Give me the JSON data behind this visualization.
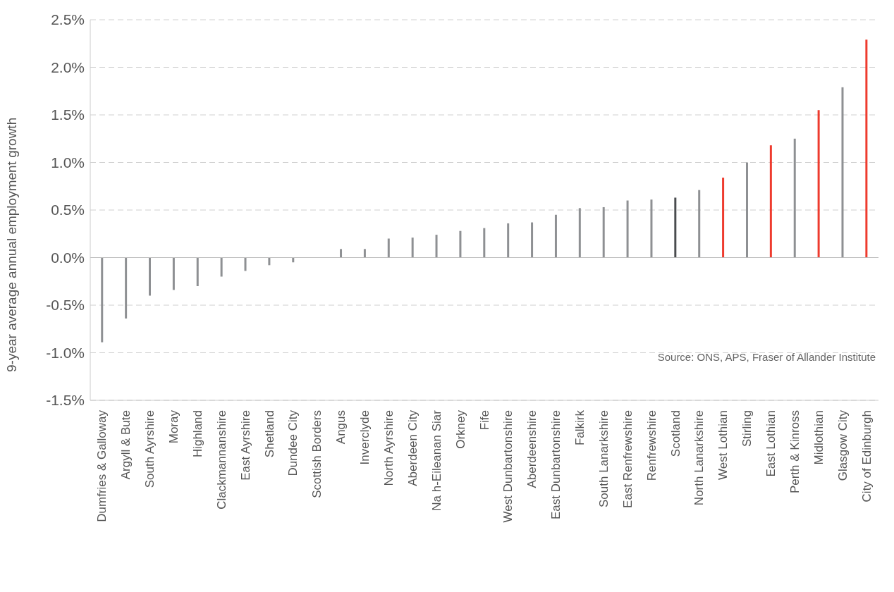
{
  "chart_data": {
    "type": "bar",
    "ylabel": "9-year average annual employment growth",
    "categories": [
      "Dumfries & Galloway",
      "Argyll & Bute",
      "South Ayrshire",
      "Moray",
      "Highland",
      "Clackmannanshire",
      "East Ayrshire",
      "Shetland",
      "Dundee City",
      "Scottish Borders",
      "Angus",
      "Inverclyde",
      "North Ayrshire",
      "Aberdeen City",
      "Na h-Eileanan Siar",
      "Orkney",
      "Fife",
      "West Dunbartonshire",
      "Aberdeenshire",
      "East Dunbartonshire",
      "Falkirk",
      "South Lanarkshire",
      "East Renfrewshire",
      "Renfrewshire",
      "Scotland",
      "North Lanarkshire",
      "West Lothian",
      "Stirling",
      "East Lothian",
      "Perth & Kinross",
      "Midlothian",
      "Glasgow City",
      "City of Edinburgh"
    ],
    "values": [
      -0.89,
      -0.64,
      -0.4,
      -0.34,
      -0.3,
      -0.2,
      -0.14,
      -0.08,
      -0.05,
      0,
      0.09,
      0.09,
      0.2,
      0.21,
      0.24,
      0.28,
      0.31,
      0.36,
      0.37,
      0.45,
      0.52,
      0.53,
      0.6,
      0.61,
      0.63,
      0.71,
      0.84,
      1.0,
      1.18,
      1.25,
      1.55,
      1.79,
      2.29
    ],
    "colors": [
      "#8e9093",
      "#8e9093",
      "#8e9093",
      "#8e9093",
      "#8e9093",
      "#8e9093",
      "#8e9093",
      "#8e9093",
      "#8e9093",
      "#8e9093",
      "#8e9093",
      "#8e9093",
      "#8e9093",
      "#8e9093",
      "#8e9093",
      "#8e9093",
      "#8e9093",
      "#8e9093",
      "#8e9093",
      "#8e9093",
      "#8e9093",
      "#8e9093",
      "#8e9093",
      "#8e9093",
      "#4a4c4f",
      "#8e9093",
      "#ee3b2e",
      "#8e9093",
      "#ee3b2e",
      "#8e9093",
      "#ee3b2e",
      "#8e9093",
      "#ee3b2e"
    ],
    "ylim": [
      -1.5,
      2.5
    ],
    "yticks": [
      {
        "value": -1.5,
        "label": "-1.5%"
      },
      {
        "value": -1.0,
        "label": "-1.0%"
      },
      {
        "value": -0.5,
        "label": "-0.5%"
      },
      {
        "value": 0,
        "label": "0.0%"
      },
      {
        "value": 0.5,
        "label": "0.5%"
      },
      {
        "value": 1.0,
        "label": "1.0%"
      },
      {
        "value": 1.5,
        "label": "1.5%"
      },
      {
        "value": 2.0,
        "label": "2.0%"
      },
      {
        "value": 2.5,
        "label": "2.5%"
      }
    ],
    "grid": "y",
    "annotations": [
      "Source: ONS, APS, Fraser of Allander Institute"
    ]
  }
}
